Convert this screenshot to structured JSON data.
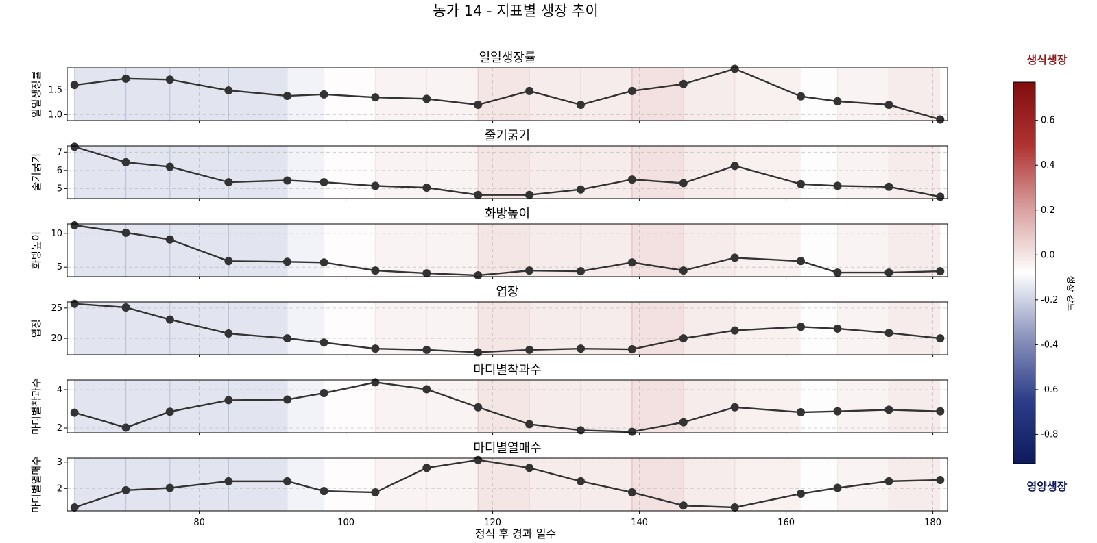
{
  "chart_data": {
    "type": "line",
    "title": "농가 14 - 지표별 생장 추이",
    "xlabel": "정식 후 경과 일수",
    "xlim": [
      62,
      182
    ],
    "xticks": [
      80,
      100,
      120,
      140,
      160,
      180
    ],
    "x": [
      63,
      70,
      76,
      84,
      92,
      97,
      104,
      111,
      118,
      125,
      132,
      139,
      146,
      153,
      162,
      167,
      174,
      181
    ],
    "growth_intensity": [
      -0.3,
      -0.3,
      -0.3,
      -0.3,
      -0.18,
      -0.05,
      0.03,
      0.03,
      0.15,
      0.1,
      0.1,
      0.2,
      0.1,
      0.06,
      -0.06,
      0.03,
      0.1,
      0.15
    ],
    "series": [
      {
        "name": "일일생장률",
        "ylabel": "일일생장률",
        "ylim": [
          0.88,
          1.95
        ],
        "yticks": [
          1.0,
          1.5
        ],
        "tick_labels": [
          "1.0",
          "1.5"
        ],
        "values": [
          1.6,
          1.73,
          1.71,
          1.49,
          1.38,
          1.41,
          1.35,
          1.32,
          1.2,
          1.48,
          1.2,
          1.48,
          1.62,
          1.93,
          1.37,
          1.27,
          1.2,
          0.9
        ]
      },
      {
        "name": "줄기굵기",
        "ylabel": "줄기굵기",
        "ylim": [
          4.45,
          7.35
        ],
        "yticks": [
          5,
          6,
          7
        ],
        "tick_labels": [
          "5",
          "6",
          "7"
        ],
        "values": [
          7.3,
          6.45,
          6.2,
          5.35,
          5.45,
          5.35,
          5.15,
          5.05,
          4.65,
          4.65,
          4.95,
          5.5,
          5.3,
          6.25,
          5.25,
          5.15,
          5.1,
          4.55
        ]
      },
      {
        "name": "화방높이",
        "ylabel": "화방높이",
        "ylim": [
          3.6,
          11.4
        ],
        "yticks": [
          5,
          10
        ],
        "tick_labels": [
          "5",
          "10"
        ],
        "values": [
          11.2,
          10.1,
          9.1,
          5.9,
          5.8,
          5.7,
          4.5,
          4.1,
          3.8,
          4.5,
          4.4,
          5.7,
          4.5,
          6.4,
          5.9,
          4.2,
          4.2,
          4.4
        ]
      },
      {
        "name": "엽장",
        "ylabel": "엽장",
        "ylim": [
          17.3,
          26.0
        ],
        "yticks": [
          20,
          25
        ],
        "tick_labels": [
          "20",
          "25"
        ],
        "values": [
          25.7,
          25.1,
          23.1,
          20.8,
          20.0,
          19.3,
          18.3,
          18.1,
          17.7,
          18.1,
          18.3,
          18.2,
          20.0,
          21.3,
          21.9,
          21.6,
          20.9,
          20.0
        ]
      },
      {
        "name": "마디별착과수",
        "ylabel": "마디별착과수",
        "ylim": [
          1.75,
          4.5
        ],
        "yticks": [
          2,
          4
        ],
        "tick_labels": [
          "2",
          "4"
        ],
        "values": [
          2.8,
          2.02,
          2.85,
          3.45,
          3.48,
          3.82,
          4.38,
          4.02,
          3.08,
          2.2,
          1.88,
          1.8,
          2.3,
          3.08,
          2.82,
          2.87,
          2.95,
          2.87
        ]
      },
      {
        "name": "마디별열매수",
        "ylabel": "마디별열매수",
        "ylim": [
          1.15,
          3.15
        ],
        "yticks": [
          2,
          3
        ],
        "tick_labels": [
          "2",
          "3"
        ],
        "values": [
          1.28,
          1.93,
          2.02,
          2.27,
          2.27,
          1.9,
          1.85,
          2.78,
          3.08,
          2.78,
          2.27,
          1.85,
          1.35,
          1.28,
          1.8,
          2.02,
          2.27,
          2.32
        ]
      }
    ],
    "colorbar": {
      "label": "생장 강도",
      "vmin": -0.93,
      "vmax": 0.77,
      "ticks": [
        -0.8,
        -0.6,
        -0.4,
        -0.2,
        0.0,
        0.2,
        0.4,
        0.6
      ],
      "tick_labels": [
        "-0.8",
        "-0.6",
        "-0.4",
        "-0.2",
        "0.0",
        "0.2",
        "0.4",
        "0.6"
      ],
      "top_label": "생식생장",
      "bottom_label": "영양생장",
      "top_color": "#8b1a1a",
      "bottom_color": "#0d1a5c",
      "colors": [
        "#0d1a5c",
        "#2e3d8a",
        "#8c95bd",
        "#ffffff",
        "#d9a0a0",
        "#b03333",
        "#800d0d"
      ]
    },
    "grid": true,
    "line_color": "#333333",
    "marker": "circle"
  }
}
